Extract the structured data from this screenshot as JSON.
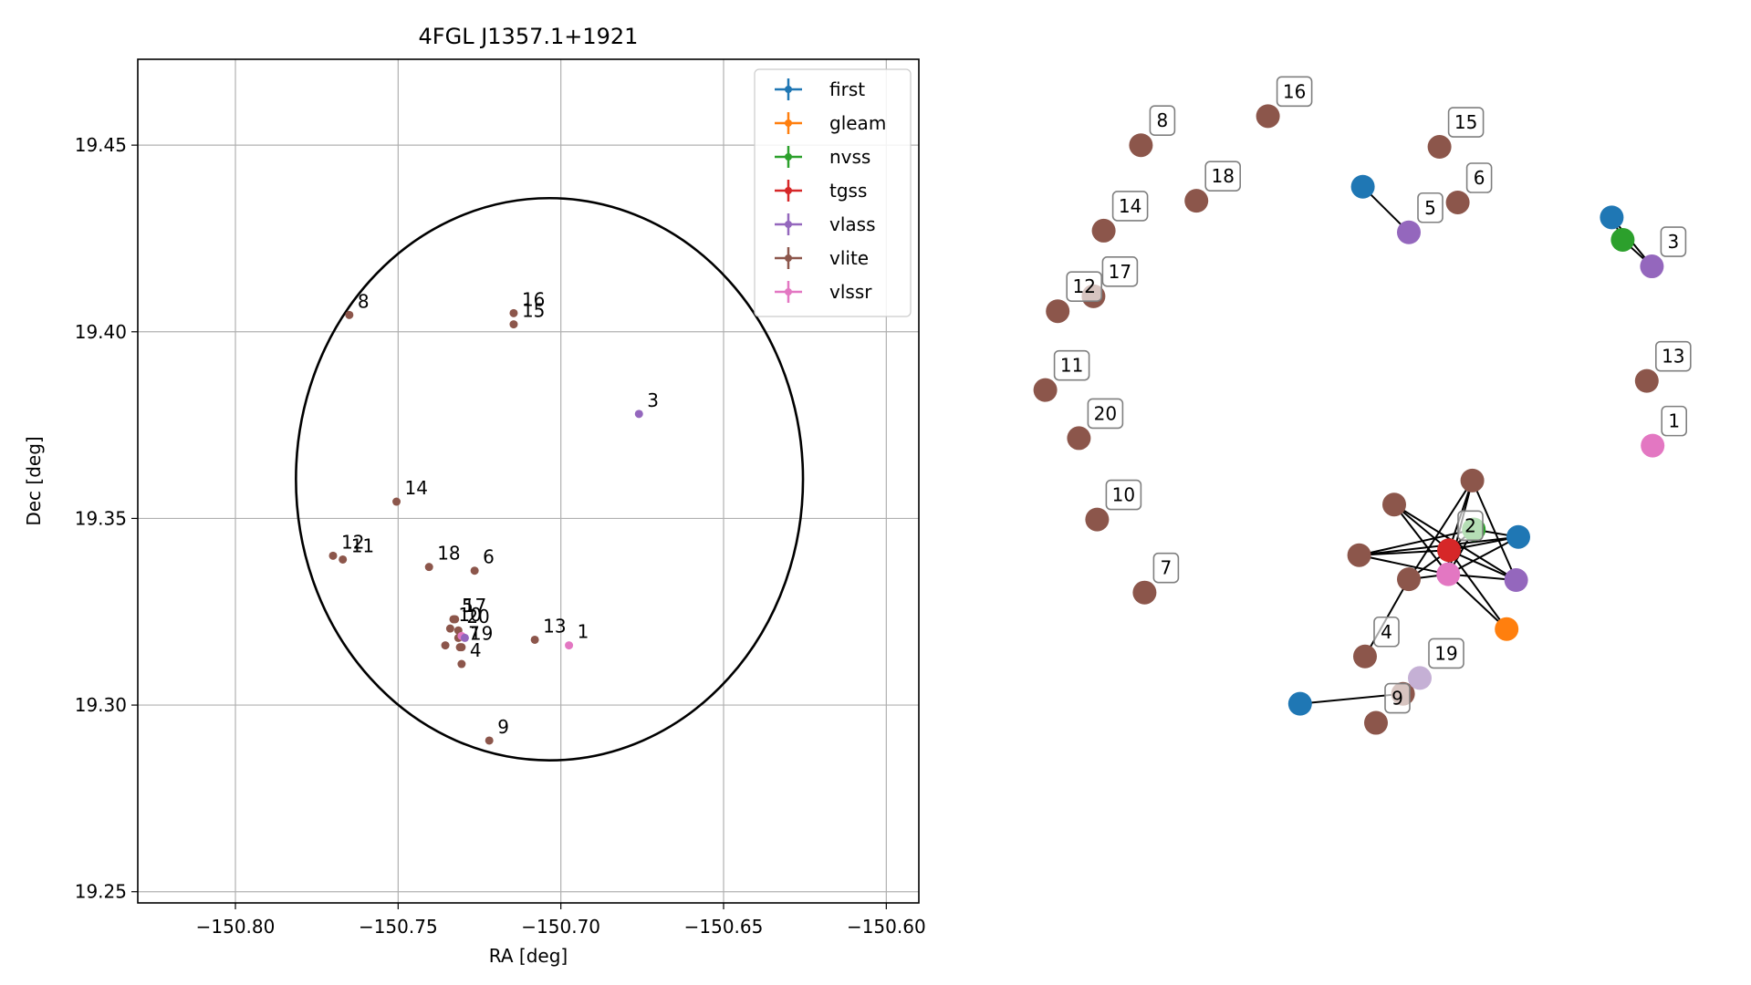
{
  "chart_data": [
    {
      "type": "scatter",
      "title": "4FGL J1357.1+1921",
      "xlabel": "RA [deg]",
      "ylabel": "Dec [deg]",
      "xlim": [
        -150.83,
        -150.59
      ],
      "ylim": [
        19.247,
        19.473
      ],
      "x_ticks": [
        -150.8,
        -150.75,
        -150.7,
        -150.65,
        -150.6
      ],
      "x_tick_labels": [
        "−150.80",
        "−150.75",
        "−150.70",
        "−150.65",
        "−150.60"
      ],
      "y_ticks": [
        19.25,
        19.3,
        19.35,
        19.4,
        19.45
      ],
      "y_tick_labels": [
        "19.25",
        "19.30",
        "19.35",
        "19.40",
        "19.45"
      ],
      "grid": true,
      "legend_position": "top-right",
      "series": [
        {
          "name": "first",
          "color": "#1f77b4"
        },
        {
          "name": "gleam",
          "color": "#ff7f0e"
        },
        {
          "name": "nvss",
          "color": "#2ca02c"
        },
        {
          "name": "tgss",
          "color": "#d62728"
        },
        {
          "name": "vlass",
          "color": "#9467bd"
        },
        {
          "name": "vlite",
          "color": "#8c564b"
        },
        {
          "name": "vlssr",
          "color": "#e377c2"
        }
      ],
      "ellipse": {
        "center": [
          -150.7035,
          19.3605
        ],
        "ra_halfwidth": 0.0779,
        "dec_halfwidth": 0.0753
      },
      "points": [
        {
          "label": "1",
          "x": -150.6975,
          "y": 19.316,
          "series": "vlssr"
        },
        {
          "label": "3",
          "x": -150.676,
          "y": 19.378,
          "series": "vlass"
        },
        {
          "label": "4",
          "x": -150.7305,
          "y": 19.311,
          "series": "vlite"
        },
        {
          "label": "5",
          "x": -150.733,
          "y": 19.323,
          "series": "vlite"
        },
        {
          "label": "6",
          "x": -150.7265,
          "y": 19.336,
          "series": "vlite"
        },
        {
          "label": "7",
          "x": -150.731,
          "y": 19.3155,
          "series": "vlite"
        },
        {
          "label": "8",
          "x": -150.765,
          "y": 19.4045,
          "series": "vlite"
        },
        {
          "label": "9",
          "x": -150.722,
          "y": 19.2905,
          "series": "vlite"
        },
        {
          "label": "10",
          "x": -150.734,
          "y": 19.3205,
          "series": "vlite"
        },
        {
          "label": "11",
          "x": -150.767,
          "y": 19.339,
          "series": "vlite"
        },
        {
          "label": "12",
          "x": -150.77,
          "y": 19.34,
          "series": "vlite"
        },
        {
          "label": "13",
          "x": -150.708,
          "y": 19.3175,
          "series": "vlite"
        },
        {
          "label": "14",
          "x": -150.7505,
          "y": 19.3545,
          "series": "vlite"
        },
        {
          "label": "15",
          "x": -150.7145,
          "y": 19.402,
          "series": "vlite"
        },
        {
          "label": "16",
          "x": -150.7145,
          "y": 19.405,
          "series": "vlite"
        },
        {
          "label": "17",
          "x": -150.7325,
          "y": 19.323,
          "series": "vlite"
        },
        {
          "label": "18",
          "x": -150.7405,
          "y": 19.337,
          "series": "vlite"
        },
        {
          "label": "19",
          "x": -150.7305,
          "y": 19.3155,
          "series": "vlite"
        },
        {
          "label": "20",
          "x": -150.7315,
          "y": 19.32,
          "series": "vlite"
        },
        {
          "label": "",
          "x": -150.7355,
          "y": 19.316,
          "series": "vlite"
        },
        {
          "label": "",
          "x": -150.7315,
          "y": 19.318,
          "series": "vlite"
        },
        {
          "label": "",
          "x": -150.7305,
          "y": 19.3185,
          "series": "vlssr"
        },
        {
          "label": "",
          "x": -150.7295,
          "y": 19.318,
          "series": "vlass"
        }
      ]
    },
    {
      "type": "network",
      "nodes": [
        {
          "id": "n16",
          "label": "16",
          "series": "vlite",
          "x": 0.387,
          "y": 0.915
        },
        {
          "id": "n15",
          "label": "15",
          "series": "vlite",
          "x": 0.622,
          "y": 0.878
        },
        {
          "id": "n8",
          "label": "8",
          "series": "vlite",
          "x": 0.213,
          "y": 0.88
        },
        {
          "id": "n18",
          "label": "18",
          "series": "vlite",
          "x": 0.289,
          "y": 0.813
        },
        {
          "id": "n14",
          "label": "14",
          "series": "vlite",
          "x": 0.162,
          "y": 0.777
        },
        {
          "id": "n6",
          "label": "6",
          "series": "vlite",
          "x": 0.647,
          "y": 0.811
        },
        {
          "id": "n5_first",
          "label": "",
          "series": "first",
          "x": 0.517,
          "y": 0.83
        },
        {
          "id": "n5",
          "label": "5",
          "series": "vlass",
          "x": 0.58,
          "y": 0.775
        },
        {
          "id": "n3_first",
          "label": "",
          "series": "first",
          "x": 0.858,
          "y": 0.793
        },
        {
          "id": "n3_nvss",
          "label": "",
          "series": "nvss",
          "x": 0.873,
          "y": 0.766
        },
        {
          "id": "n3",
          "label": "3",
          "series": "vlass",
          "x": 0.913,
          "y": 0.734
        },
        {
          "id": "n17",
          "label": "17",
          "series": "vlite",
          "x": 0.148,
          "y": 0.698
        },
        {
          "id": "n12",
          "label": "12",
          "series": "vlite",
          "x": 0.099,
          "y": 0.68
        },
        {
          "id": "n11",
          "label": "11",
          "series": "vlite",
          "x": 0.082,
          "y": 0.585
        },
        {
          "id": "n13",
          "label": "13",
          "series": "vlite",
          "x": 0.906,
          "y": 0.596
        },
        {
          "id": "n20",
          "label": "20",
          "series": "vlite",
          "x": 0.128,
          "y": 0.527
        },
        {
          "id": "n1",
          "label": "1",
          "series": "vlssr",
          "x": 0.914,
          "y": 0.518
        },
        {
          "id": "n10",
          "label": "10",
          "series": "vlite",
          "x": 0.153,
          "y": 0.429
        },
        {
          "id": "n7",
          "label": "7",
          "series": "vlite",
          "x": 0.218,
          "y": 0.341
        },
        {
          "id": "c_vlite_top",
          "label": "",
          "series": "vlite",
          "x": 0.667,
          "y": 0.476
        },
        {
          "id": "c_vlite_ul",
          "label": "",
          "series": "vlite",
          "x": 0.56,
          "y": 0.447
        },
        {
          "id": "c_nvss",
          "label": "",
          "series": "nvss",
          "x": 0.669,
          "y": 0.417
        },
        {
          "id": "c_first",
          "label": "",
          "series": "first",
          "x": 0.73,
          "y": 0.408
        },
        {
          "id": "c_tgss",
          "label": "2",
          "series": "tgss",
          "x": 0.635,
          "y": 0.392
        },
        {
          "id": "c_vlite_l",
          "label": "",
          "series": "vlite",
          "x": 0.512,
          "y": 0.386
        },
        {
          "id": "c_vlite_m",
          "label": "",
          "series": "vlite",
          "x": 0.58,
          "y": 0.357
        },
        {
          "id": "c_vlssr",
          "label": "",
          "series": "vlssr",
          "x": 0.634,
          "y": 0.363
        },
        {
          "id": "c_vlass",
          "label": "",
          "series": "vlass",
          "x": 0.727,
          "y": 0.356
        },
        {
          "id": "c_gleam",
          "label": "",
          "series": "gleam",
          "x": 0.714,
          "y": 0.297
        },
        {
          "id": "n4",
          "label": "4",
          "series": "vlite",
          "x": 0.52,
          "y": 0.264
        },
        {
          "id": "n19_first",
          "label": "",
          "series": "first",
          "x": 0.431,
          "y": 0.207
        },
        {
          "id": "n19_vlite",
          "label": "",
          "series": "vlite",
          "x": 0.572,
          "y": 0.219
        },
        {
          "id": "n19",
          "label": "19",
          "series": "vlass-light",
          "x": 0.595,
          "y": 0.238
        },
        {
          "id": "n9",
          "label": "9",
          "series": "vlite",
          "x": 0.535,
          "y": 0.184
        }
      ],
      "edges": [
        [
          "n5_first",
          "n5"
        ],
        [
          "n3_first",
          "n3_nvss"
        ],
        [
          "n3_first",
          "n3"
        ],
        [
          "n3_nvss",
          "n3"
        ],
        [
          "c_tgss",
          "c_vlite_top"
        ],
        [
          "c_tgss",
          "c_vlite_ul"
        ],
        [
          "c_tgss",
          "c_nvss"
        ],
        [
          "c_tgss",
          "c_first"
        ],
        [
          "c_tgss",
          "c_vlite_l"
        ],
        [
          "c_tgss",
          "c_vlite_m"
        ],
        [
          "c_tgss",
          "c_vlssr"
        ],
        [
          "c_tgss",
          "c_vlass"
        ],
        [
          "c_tgss",
          "c_gleam"
        ],
        [
          "c_vlssr",
          "c_vlite_top"
        ],
        [
          "c_vlssr",
          "c_vlite_ul"
        ],
        [
          "c_vlssr",
          "c_nvss"
        ],
        [
          "c_vlssr",
          "c_first"
        ],
        [
          "c_vlssr",
          "c_vlite_l"
        ],
        [
          "c_vlssr",
          "c_vlite_m"
        ],
        [
          "c_vlssr",
          "c_vlass"
        ],
        [
          "c_vlssr",
          "c_gleam"
        ],
        [
          "c_vlite_top",
          "c_vlite_m"
        ],
        [
          "c_vlite_top",
          "c_vlass"
        ],
        [
          "c_nvss",
          "c_first"
        ],
        [
          "c_nvss",
          "c_vlite_l"
        ],
        [
          "c_vlite_ul",
          "c_vlass"
        ],
        [
          "c_vlite_l",
          "c_first"
        ],
        [
          "c_vlite_m",
          "n4"
        ],
        [
          "n19_first",
          "n19_vlite"
        ],
        [
          "n19_vlite",
          "n19"
        ]
      ]
    }
  ],
  "colors": {
    "first": "#1f77b4",
    "gleam": "#ff7f0e",
    "nvss": "#2ca02c",
    "tgss": "#d62728",
    "vlass": "#9467bd",
    "vlite": "#8c564b",
    "vlssr": "#e377c2",
    "vlass-light": "#c5b0d5",
    "grid": "#b0b0b0",
    "axis": "#000000",
    "label_box_edge": "#7f7f7f"
  }
}
